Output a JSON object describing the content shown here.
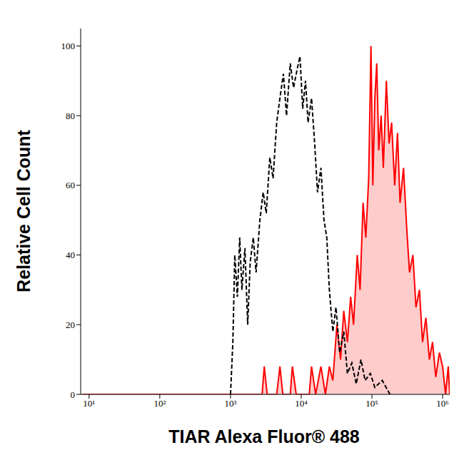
{
  "chart_data": {
    "type": "line",
    "x_label": "TIAR Alexa Fluor® 488",
    "y_label": "Relative Cell Count",
    "log": "x",
    "xlim": [
      7.6,
      1260000
    ],
    "ylim": [
      0,
      105
    ],
    "xticks": [
      {
        "value": 10,
        "label": "10¹"
      },
      {
        "value": 100,
        "label": "10²"
      },
      {
        "value": 1000,
        "label": "10³"
      },
      {
        "value": 10000,
        "label": "10⁴"
      },
      {
        "value": 100000,
        "label": "10⁵"
      },
      {
        "value": 1000000,
        "label": "10⁶"
      }
    ],
    "yticks": [
      0,
      20,
      40,
      60,
      80,
      100
    ],
    "series": [
      {
        "type": "line",
        "color": "#000000",
        "line_style": "dashed",
        "x": [
          1000,
          1080,
          1150,
          1250,
          1350,
          1450,
          1600,
          1750,
          1900,
          2100,
          2300,
          2600,
          2900,
          3200,
          3600,
          4000,
          4500,
          5000,
          5600,
          6200,
          7000,
          7800,
          8700,
          9600,
          10500,
          11500,
          12500,
          14000,
          15500,
          17000,
          19000,
          21000,
          23000,
          25000,
          28000,
          31000,
          35000,
          40000,
          45000,
          52000,
          60000,
          70000,
          80000,
          95000,
          110000,
          140000,
          180000
        ],
        "values": [
          0,
          15,
          40,
          28,
          45,
          30,
          42,
          20,
          38,
          45,
          35,
          50,
          58,
          52,
          68,
          62,
          78,
          85,
          92,
          80,
          95,
          88,
          93,
          97,
          82,
          90,
          78,
          85,
          72,
          58,
          65,
          50,
          45,
          30,
          18,
          25,
          12,
          18,
          6,
          9,
          3,
          10,
          4,
          6,
          2,
          4,
          0
        ]
      },
      {
        "type": "area",
        "color": "#ff0000",
        "line_style": "solid",
        "x": [
          8,
          2800,
          3000,
          3300,
          4500,
          5000,
          5500,
          7000,
          7500,
          8500,
          13000,
          14000,
          16000,
          19000,
          22000,
          25000,
          28000,
          32000,
          36000,
          40000,
          45000,
          50000,
          55000,
          62000,
          68000,
          75000,
          82000,
          90000,
          97000,
          103000,
          110000,
          117000,
          125000,
          135000,
          145000,
          160000,
          175000,
          190000,
          210000,
          230000,
          250000,
          280000,
          310000,
          340000,
          380000,
          420000,
          470000,
          520000,
          580000,
          650000,
          720000,
          800000,
          900000,
          1000000,
          1100000,
          1200000,
          1260000
        ],
        "values": [
          0,
          0,
          8,
          0,
          0,
          8,
          0,
          0,
          8,
          0,
          0,
          8,
          0,
          8,
          0,
          8,
          4,
          20,
          10,
          24,
          15,
          28,
          20,
          40,
          30,
          55,
          45,
          62,
          100,
          60,
          85,
          95,
          70,
          80,
          65,
          90,
          72,
          78,
          60,
          75,
          55,
          65,
          48,
          35,
          40,
          25,
          30,
          15,
          22,
          10,
          15,
          5,
          12,
          8,
          0,
          8,
          0
        ]
      }
    ]
  }
}
